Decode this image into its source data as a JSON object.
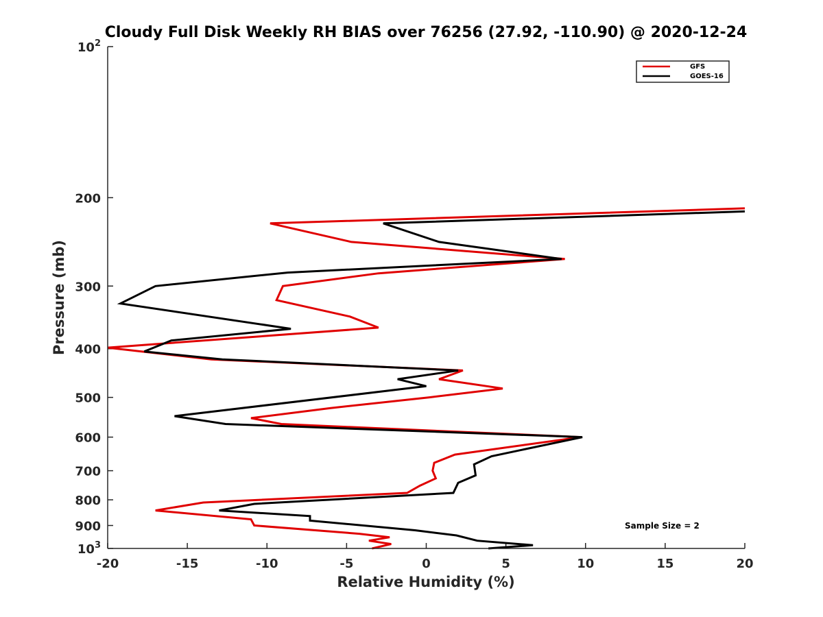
{
  "chart_data": {
    "type": "line",
    "title": "Cloudy Full Disk Weekly RH BIAS over 76256 (27.92, -110.90) @ 2020-12-24",
    "xlabel": "Relative Humidity (%)",
    "ylabel": "Pressure (mb)",
    "xlim": [
      -20,
      20
    ],
    "ylim": [
      100,
      1000
    ],
    "yscale": "log",
    "yreversed": true,
    "xticks": [
      -20,
      -15,
      -10,
      -5,
      0,
      5,
      10,
      15,
      20
    ],
    "xtick_labels": [
      "-20",
      "-15",
      "-10",
      "-5",
      "0",
      "5",
      "10",
      "15",
      "20"
    ],
    "yticks": [
      200,
      300,
      400,
      500,
      600,
      700,
      800,
      900
    ],
    "ytick_labels": [
      "200",
      "300",
      "400",
      "500",
      "600",
      "700",
      "800",
      "900"
    ],
    "ytick_log_labels": [
      {
        "value": 100,
        "base": "10",
        "exp": "2"
      },
      {
        "value": 1000,
        "base": "10",
        "exp": "3"
      }
    ],
    "legend_position": "top-right",
    "annotation": "Sample Size = 2",
    "series": [
      {
        "name": "GFS",
        "color": "#e00000",
        "points": [
          [
            20.0,
            210
          ],
          [
            -9.8,
            225
          ],
          [
            -4.7,
            245
          ],
          [
            8.7,
            265
          ],
          [
            -3.0,
            283
          ],
          [
            -9.0,
            300
          ],
          [
            -9.4,
            320
          ],
          [
            -4.8,
            345
          ],
          [
            -3.0,
            363
          ],
          [
            -20.0,
            398
          ],
          [
            -13.5,
            420
          ],
          [
            2.3,
            442
          ],
          [
            0.8,
            460
          ],
          [
            4.8,
            480
          ],
          [
            0.2,
            500
          ],
          [
            -6.0,
            525
          ],
          [
            -11.0,
            550
          ],
          [
            -9.1,
            565
          ],
          [
            9.7,
            600
          ],
          [
            1.8,
            650
          ],
          [
            0.5,
            675
          ],
          [
            0.4,
            700
          ],
          [
            0.6,
            725
          ],
          [
            -0.4,
            750
          ],
          [
            -1.2,
            775
          ],
          [
            -14.0,
            810
          ],
          [
            -17.0,
            840
          ],
          [
            -11.0,
            875
          ],
          [
            -10.8,
            900
          ],
          [
            -4.2,
            935
          ],
          [
            -2.3,
            950
          ],
          [
            -3.6,
            965
          ],
          [
            -2.2,
            980
          ],
          [
            -3.4,
            1000
          ]
        ]
      },
      {
        "name": "GOES-16",
        "color": "#000000",
        "points": [
          [
            20.0,
            213
          ],
          [
            -2.7,
            225
          ],
          [
            0.8,
            245
          ],
          [
            8.5,
            265
          ],
          [
            -8.7,
            282
          ],
          [
            -17.0,
            300
          ],
          [
            -19.2,
            325
          ],
          [
            -8.5,
            365
          ],
          [
            -16.0,
            385
          ],
          [
            -17.7,
            405
          ],
          [
            -12.8,
            420
          ],
          [
            2.0,
            442
          ],
          [
            -1.8,
            460
          ],
          [
            0.0,
            475
          ],
          [
            -15.8,
            545
          ],
          [
            -12.6,
            565
          ],
          [
            9.8,
            600
          ],
          [
            4.1,
            655
          ],
          [
            3.0,
            680
          ],
          [
            3.1,
            715
          ],
          [
            2.0,
            740
          ],
          [
            1.7,
            775
          ],
          [
            -10.8,
            815
          ],
          [
            -13.0,
            840
          ],
          [
            -7.3,
            862
          ],
          [
            -7.3,
            880
          ],
          [
            -0.7,
            920
          ],
          [
            1.9,
            942
          ],
          [
            3.2,
            965
          ],
          [
            6.7,
            985
          ],
          [
            3.9,
            1000
          ]
        ]
      }
    ]
  }
}
